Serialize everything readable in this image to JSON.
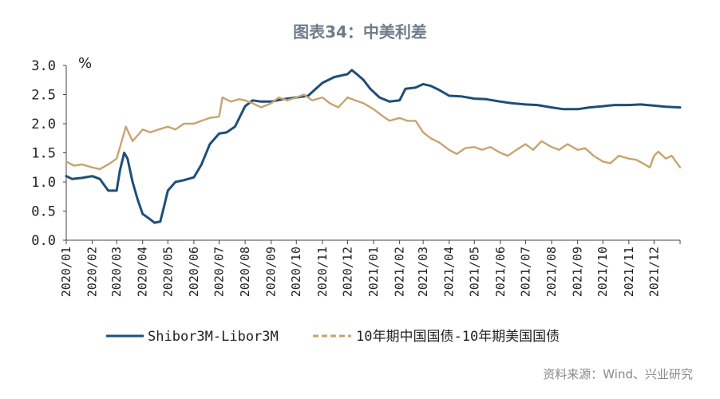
{
  "chart_data": {
    "type": "line",
    "title": "图表34：中美利差",
    "unit_label": "%",
    "source": "资料来源：Wind、兴业研究",
    "ylim": [
      0.0,
      3.0
    ],
    "y_ticks": [
      "0.0",
      "0.5",
      "1.0",
      "1.5",
      "2.0",
      "2.5",
      "3.0"
    ],
    "y_tick_values": [
      0.0,
      0.5,
      1.0,
      1.5,
      2.0,
      2.5,
      3.0
    ],
    "xlim": [
      "2020-01-01",
      "2022-01-01"
    ],
    "x_ticks": [
      "2020/01",
      "2020/02",
      "2020/03",
      "2020/04",
      "2020/05",
      "2020/06",
      "2020/07",
      "2020/08",
      "2020/09",
      "2020/10",
      "2020/11",
      "2020/12",
      "2021/01",
      "2021/02",
      "2021/03",
      "2021/04",
      "2021/05",
      "2021/06",
      "2021/07",
      "2021/08",
      "2021/09",
      "2021/10",
      "2021/11",
      "2021/12"
    ],
    "grid": false,
    "legend_position": "bottom",
    "series": [
      {
        "name": "Shibor3M-Libor3M",
        "color": "#1f4e79",
        "style": "solid",
        "points": [
          [
            "2020-01-01",
            1.1
          ],
          [
            "2020-01-08",
            1.05
          ],
          [
            "2020-01-20",
            1.07
          ],
          [
            "2020-02-01",
            1.1
          ],
          [
            "2020-02-10",
            1.05
          ],
          [
            "2020-02-20",
            0.85
          ],
          [
            "2020-03-01",
            0.85
          ],
          [
            "2020-03-05",
            1.2
          ],
          [
            "2020-03-10",
            1.5
          ],
          [
            "2020-03-14",
            1.4
          ],
          [
            "2020-03-20",
            1.0
          ],
          [
            "2020-03-26",
            0.7
          ],
          [
            "2020-04-01",
            0.45
          ],
          [
            "2020-04-08",
            0.38
          ],
          [
            "2020-04-15",
            0.3
          ],
          [
            "2020-04-22",
            0.32
          ],
          [
            "2020-04-26",
            0.55
          ],
          [
            "2020-05-01",
            0.85
          ],
          [
            "2020-05-10",
            1.0
          ],
          [
            "2020-05-20",
            1.03
          ],
          [
            "2020-06-01",
            1.08
          ],
          [
            "2020-06-10",
            1.3
          ],
          [
            "2020-06-20",
            1.65
          ],
          [
            "2020-07-01",
            1.83
          ],
          [
            "2020-07-10",
            1.85
          ],
          [
            "2020-07-20",
            1.95
          ],
          [
            "2020-08-01",
            2.3
          ],
          [
            "2020-08-10",
            2.4
          ],
          [
            "2020-08-20",
            2.38
          ],
          [
            "2020-09-01",
            2.38
          ],
          [
            "2020-09-15",
            2.42
          ],
          [
            "2020-10-01",
            2.45
          ],
          [
            "2020-10-15",
            2.48
          ],
          [
            "2020-11-01",
            2.7
          ],
          [
            "2020-11-15",
            2.8
          ],
          [
            "2020-12-01",
            2.85
          ],
          [
            "2020-12-06",
            2.92
          ],
          [
            "2020-12-12",
            2.85
          ],
          [
            "2020-12-20",
            2.75
          ],
          [
            "2020-12-28",
            2.6
          ],
          [
            "2021-01-08",
            2.45
          ],
          [
            "2021-01-20",
            2.38
          ],
          [
            "2021-02-01",
            2.4
          ],
          [
            "2021-02-08",
            2.6
          ],
          [
            "2021-02-20",
            2.62
          ],
          [
            "2021-03-01",
            2.68
          ],
          [
            "2021-03-10",
            2.65
          ],
          [
            "2021-03-20",
            2.58
          ],
          [
            "2021-04-01",
            2.48
          ],
          [
            "2021-04-15",
            2.47
          ],
          [
            "2021-05-01",
            2.43
          ],
          [
            "2021-05-15",
            2.42
          ],
          [
            "2021-06-01",
            2.38
          ],
          [
            "2021-06-15",
            2.35
          ],
          [
            "2021-07-01",
            2.33
          ],
          [
            "2021-07-15",
            2.32
          ],
          [
            "2021-08-01",
            2.28
          ],
          [
            "2021-08-15",
            2.25
          ],
          [
            "2021-09-01",
            2.25
          ],
          [
            "2021-09-15",
            2.28
          ],
          [
            "2021-10-01",
            2.3
          ],
          [
            "2021-10-15",
            2.32
          ],
          [
            "2021-11-01",
            2.32
          ],
          [
            "2021-11-15",
            2.33
          ],
          [
            "2021-12-01",
            2.31
          ],
          [
            "2021-12-15",
            2.29
          ],
          [
            "2022-01-01",
            2.28
          ]
        ]
      },
      {
        "name": "10年期中国国债-10年期美国国债",
        "color": "#c8a46e",
        "style": "dashed",
        "points": [
          [
            "2020-01-01",
            1.35
          ],
          [
            "2020-01-10",
            1.28
          ],
          [
            "2020-01-20",
            1.3
          ],
          [
            "2020-02-01",
            1.25
          ],
          [
            "2020-02-10",
            1.22
          ],
          [
            "2020-02-20",
            1.3
          ],
          [
            "2020-03-01",
            1.4
          ],
          [
            "2020-03-08",
            1.75
          ],
          [
            "2020-03-12",
            1.95
          ],
          [
            "2020-03-20",
            1.7
          ],
          [
            "2020-03-26",
            1.8
          ],
          [
            "2020-04-01",
            1.9
          ],
          [
            "2020-04-10",
            1.85
          ],
          [
            "2020-04-20",
            1.9
          ],
          [
            "2020-05-01",
            1.95
          ],
          [
            "2020-05-10",
            1.9
          ],
          [
            "2020-05-20",
            2.0
          ],
          [
            "2020-06-01",
            2.0
          ],
          [
            "2020-06-10",
            2.05
          ],
          [
            "2020-06-20",
            2.1
          ],
          [
            "2020-07-01",
            2.12
          ],
          [
            "2020-07-05",
            2.45
          ],
          [
            "2020-07-15",
            2.38
          ],
          [
            "2020-07-25",
            2.42
          ],
          [
            "2020-08-01",
            2.4
          ],
          [
            "2020-08-10",
            2.35
          ],
          [
            "2020-08-20",
            2.28
          ],
          [
            "2020-09-01",
            2.35
          ],
          [
            "2020-09-10",
            2.45
          ],
          [
            "2020-09-20",
            2.4
          ],
          [
            "2020-10-01",
            2.45
          ],
          [
            "2020-10-10",
            2.5
          ],
          [
            "2020-10-20",
            2.4
          ],
          [
            "2020-11-01",
            2.45
          ],
          [
            "2020-11-10",
            2.35
          ],
          [
            "2020-11-20",
            2.28
          ],
          [
            "2020-12-01",
            2.45
          ],
          [
            "2020-12-10",
            2.4
          ],
          [
            "2020-12-20",
            2.35
          ],
          [
            "2021-01-01",
            2.25
          ],
          [
            "2021-01-10",
            2.15
          ],
          [
            "2021-01-20",
            2.05
          ],
          [
            "2021-02-01",
            2.1
          ],
          [
            "2021-02-10",
            2.05
          ],
          [
            "2021-02-20",
            2.05
          ],
          [
            "2021-03-01",
            1.85
          ],
          [
            "2021-03-10",
            1.75
          ],
          [
            "2021-03-20",
            1.68
          ],
          [
            "2021-04-01",
            1.55
          ],
          [
            "2021-04-10",
            1.48
          ],
          [
            "2021-04-20",
            1.58
          ],
          [
            "2021-05-01",
            1.6
          ],
          [
            "2021-05-10",
            1.55
          ],
          [
            "2021-05-20",
            1.6
          ],
          [
            "2021-06-01",
            1.5
          ],
          [
            "2021-06-10",
            1.45
          ],
          [
            "2021-06-20",
            1.55
          ],
          [
            "2021-07-01",
            1.65
          ],
          [
            "2021-07-10",
            1.55
          ],
          [
            "2021-07-20",
            1.7
          ],
          [
            "2021-08-01",
            1.6
          ],
          [
            "2021-08-10",
            1.55
          ],
          [
            "2021-08-20",
            1.65
          ],
          [
            "2021-09-01",
            1.55
          ],
          [
            "2021-09-10",
            1.58
          ],
          [
            "2021-09-20",
            1.45
          ],
          [
            "2021-10-01",
            1.35
          ],
          [
            "2021-10-10",
            1.32
          ],
          [
            "2021-10-20",
            1.45
          ],
          [
            "2021-11-01",
            1.4
          ],
          [
            "2021-11-10",
            1.38
          ],
          [
            "2021-11-20",
            1.3
          ],
          [
            "2021-11-26",
            1.25
          ],
          [
            "2021-12-01",
            1.45
          ],
          [
            "2021-12-06",
            1.52
          ],
          [
            "2021-12-15",
            1.4
          ],
          [
            "2021-12-22",
            1.45
          ],
          [
            "2022-01-01",
            1.25
          ]
        ]
      }
    ]
  }
}
